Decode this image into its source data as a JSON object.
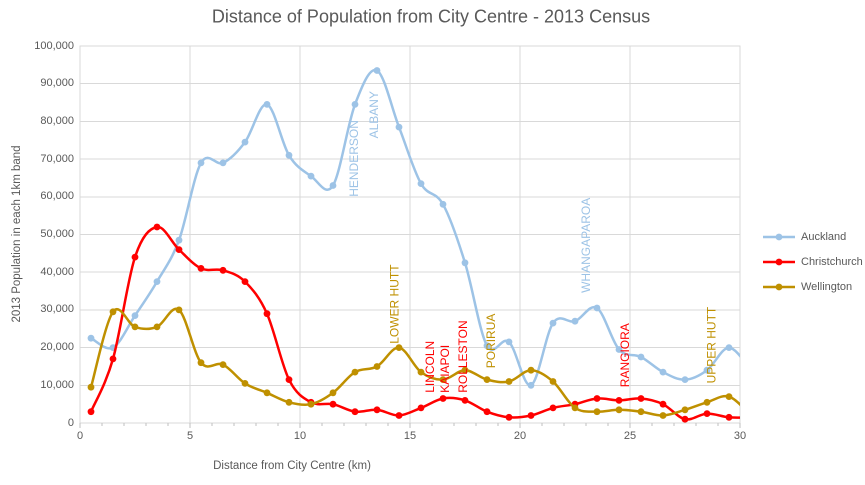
{
  "title": "Distance of Population from City Centre - 2013 Census",
  "chart_data": {
    "type": "line",
    "title": "Distance of Population from City Centre - 2013 Census",
    "xlabel": "Distance from City Centre (km)",
    "ylabel": "2013 Population in each 1km band",
    "xlim": [
      0,
      30
    ],
    "ylim": [
      0,
      100000
    ],
    "grid": true,
    "legend_position": "right",
    "x_tick_labels": [
      "0",
      "5",
      "10",
      "15",
      "20",
      "25",
      "30"
    ],
    "x_tick_values": [
      0,
      5,
      10,
      15,
      20,
      25,
      30
    ],
    "y_tick_labels": [
      "0",
      "10,000",
      "20,000",
      "30,000",
      "40,000",
      "50,000",
      "60,000",
      "70,000",
      "80,000",
      "90,000",
      "100,000"
    ],
    "y_tick_values": [
      0,
      10000,
      20000,
      30000,
      40000,
      50000,
      60000,
      70000,
      80000,
      90000,
      100000
    ],
    "x": [
      0.5,
      1.5,
      2.5,
      3.5,
      4.5,
      5.5,
      6.5,
      7.5,
      8.5,
      9.5,
      10.5,
      11.5,
      12.5,
      13.5,
      14.5,
      15.5,
      16.5,
      17.5,
      18.5,
      19.5,
      20.5,
      21.5,
      22.5,
      23.5,
      24.5,
      25.5,
      26.5,
      27.5,
      28.5,
      29.5,
      30.5
    ],
    "clipped_tail_note": "last x value (30.5) is the off-chart continuation clipped at 30 km",
    "series": [
      {
        "name": "Auckland",
        "color": "#9DC3E6",
        "values": [
          22500,
          20000,
          28500,
          37500,
          48500,
          69000,
          69000,
          74500,
          84500,
          71000,
          65500,
          63000,
          84500,
          93500,
          78500,
          63500,
          58000,
          42500,
          20500,
          21500,
          10000,
          26500,
          27000,
          30500,
          19500,
          17500,
          13500,
          11500,
          14000,
          20000,
          14000
        ]
      },
      {
        "name": "Christchurch",
        "color": "#FF0000",
        "values": [
          3000,
          17000,
          44000,
          52000,
          46000,
          41000,
          40500,
          37500,
          29000,
          11500,
          5500,
          5000,
          3000,
          3500,
          2000,
          4000,
          6500,
          6000,
          3000,
          1500,
          2000,
          4000,
          5000,
          6500,
          6000,
          6500,
          5000,
          1000,
          2500,
          1500,
          1500
        ]
      },
      {
        "name": "Wellington",
        "color": "#BF9000",
        "values": [
          9500,
          29500,
          25500,
          25500,
          30000,
          16000,
          15500,
          10500,
          8000,
          5500,
          5000,
          8000,
          13500,
          15000,
          20000,
          13500,
          11500,
          14000,
          11500,
          11000,
          14000,
          11000,
          4000,
          3000,
          3500,
          3000,
          2000,
          3500,
          5500,
          7000,
          2000
        ]
      }
    ],
    "annotations": [
      {
        "text": "HENDERSON",
        "series": "Auckland",
        "color": "#9DC3E6",
        "x_km": 12.45,
        "y_bottom": 60000
      },
      {
        "text": "ALBANY",
        "series": "Auckland",
        "color": "#9DC3E6",
        "x_km": 13.36,
        "y_bottom": 75500
      },
      {
        "text": "LOWER HUTT",
        "series": "Wellington",
        "color": "#BF9000",
        "x_km": 14.3,
        "y_bottom": 21000
      },
      {
        "text": "LINCOLN",
        "series": "Christchurch",
        "color": "#FF0000",
        "x_km": 15.9,
        "y_bottom": 8000
      },
      {
        "text": "KAIAPOI",
        "series": "Christchurch",
        "color": "#FF0000",
        "x_km": 16.6,
        "y_bottom": 8000
      },
      {
        "text": "ROLLESTON",
        "series": "Christchurch",
        "color": "#FF0000",
        "x_km": 17.4,
        "y_bottom": 8000
      },
      {
        "text": "PORIRUA",
        "series": "Wellington",
        "color": "#BF9000",
        "x_km": 18.68,
        "y_bottom": 14500
      },
      {
        "text": "WHANGAPAROA",
        "series": "Auckland",
        "color": "#9DC3E6",
        "x_km": 23.0,
        "y_bottom": 34500
      },
      {
        "text": "RANGIORA",
        "series": "Christchurch",
        "color": "#FF0000",
        "x_km": 24.77,
        "y_bottom": 9500
      },
      {
        "text": "UPPER HUTT",
        "series": "Wellington",
        "color": "#BF9000",
        "x_km": 28.7,
        "y_bottom": 10500
      }
    ],
    "colors": {
      "grid": "#D9D9D9",
      "axis": "#BFBFBF",
      "text": "#595959",
      "background": "#FFFFFF"
    }
  },
  "legend": {
    "items": [
      "Auckland",
      "Christchurch",
      "Wellington"
    ]
  }
}
